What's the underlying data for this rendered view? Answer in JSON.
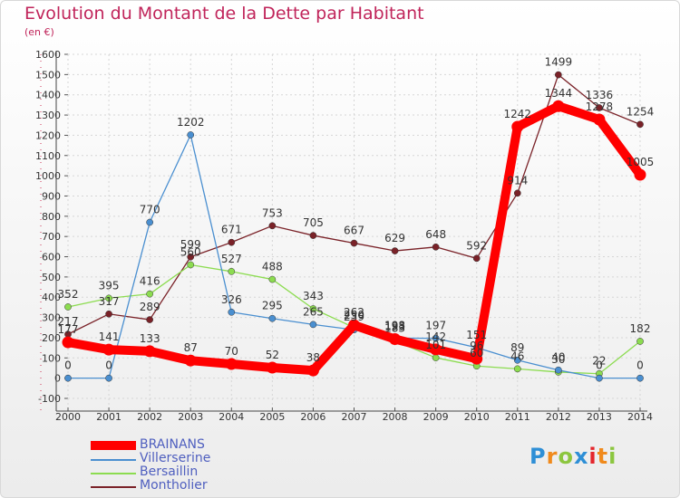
{
  "header": {
    "title": "Evolution du Montant de la Dette par Habitant",
    "subtitle": "(en €)"
  },
  "logo": {
    "text": "Proxiti"
  },
  "chart_data": {
    "type": "line",
    "title": "Evolution du Montant de la Dette par Habitant",
    "ylabel": "(en €)",
    "xlabel": "",
    "x": [
      "2000",
      "2001",
      "2002",
      "2003",
      "2004",
      "2005",
      "2006",
      "2007",
      "2008",
      "2009",
      "2010",
      "2011",
      "2012",
      "2013",
      "2014"
    ],
    "ylim": [
      -100,
      1600
    ],
    "yticks": [
      -100,
      0,
      100,
      200,
      300,
      400,
      500,
      600,
      700,
      800,
      900,
      1000,
      1100,
      1200,
      1300,
      1400,
      1500,
      1600
    ],
    "grid": true,
    "legend_position": "bottom-left",
    "series": [
      {
        "name": "BRAINANS",
        "color": "#ff0000",
        "values": [
          177,
          141,
          133,
          87,
          70,
          52,
          38,
          262,
          193,
          142,
          96,
          1242,
          1344,
          1278,
          1005
        ],
        "labels": [
          "177",
          "141",
          "133",
          "87",
          "70",
          "52",
          "38",
          "262",
          "193",
          "142",
          "96",
          "1242",
          "1344",
          "1278",
          "1005"
        ]
      },
      {
        "name": "Villerserine",
        "color": "#4a8fd0",
        "values": [
          0,
          0,
          770,
          1202,
          326,
          295,
          265,
          239,
          198,
          197,
          151,
          89,
          40,
          0,
          0
        ],
        "labels": [
          "0",
          "0",
          "770",
          "1202",
          "326",
          "295",
          "265",
          "239",
          "198",
          "197",
          "151",
          "89",
          "40",
          "0",
          "0"
        ]
      },
      {
        "name": "Bersaillin",
        "color": "#8cdc50",
        "values": [
          352,
          395,
          416,
          560,
          527,
          488,
          343,
          250,
          183,
          101,
          60,
          46,
          30,
          22,
          182
        ],
        "labels": [
          "352",
          "395",
          "416",
          "560",
          "527",
          "488",
          "343",
          "250",
          "183",
          "101",
          "60",
          "46",
          "30",
          "22",
          "182"
        ]
      },
      {
        "name": "Montholier",
        "color": "#7a2228",
        "values": [
          217,
          317,
          289,
          599,
          671,
          753,
          705,
          667,
          629,
          648,
          592,
          914,
          1499,
          1336,
          1254
        ],
        "labels": [
          "217",
          "317",
          "289",
          "599",
          "671",
          "753",
          "705",
          "667",
          "629",
          "648",
          "592",
          "914",
          "1499",
          "1336",
          "1254"
        ]
      }
    ]
  }
}
